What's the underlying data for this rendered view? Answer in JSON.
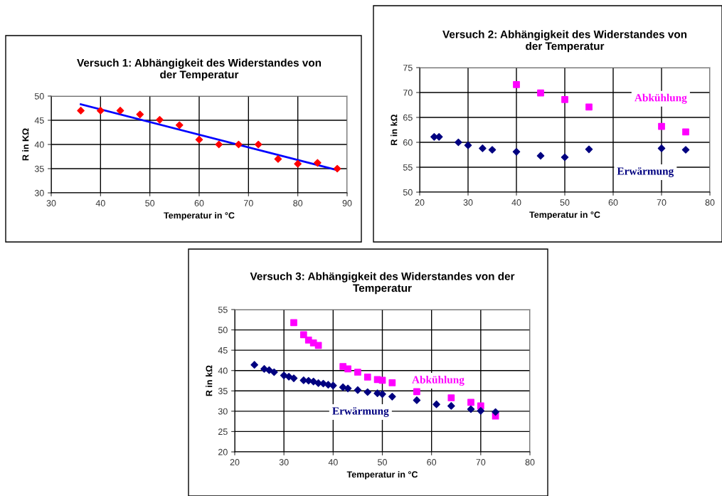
{
  "chart_data": [
    {
      "type": "scatter",
      "title": "Versuch 1: Abhängigkeit des Widerstandes von\nder Temperatur",
      "xlabel": "Temperatur in °C",
      "ylabel": "R in KΩ",
      "xlim": [
        30,
        90
      ],
      "xticks": [
        30,
        40,
        50,
        60,
        70,
        80,
        90
      ],
      "ylim": [
        30,
        50
      ],
      "yticks": [
        30,
        35,
        40,
        45,
        50
      ],
      "grid": true,
      "legend": false,
      "series": [
        {
          "color": "#ff0000",
          "marker": "diamond",
          "x": [
            36,
            40,
            44,
            48,
            52,
            56,
            60,
            64,
            68,
            72,
            76,
            80,
            84,
            88
          ],
          "values": [
            47,
            47,
            47,
            46.2,
            45.1,
            44,
            41,
            40,
            40,
            40,
            37,
            36,
            36.2,
            35
          ]
        },
        {
          "type": "line",
          "color": "#0000ff",
          "x": [
            36,
            88
          ],
          "values": [
            48.3,
            34.7
          ]
        }
      ]
    },
    {
      "type": "scatter",
      "title": "Versuch 2: Abhängigkeit des Widerstandes von\nder Temperatur",
      "xlabel": "Temperatur in °C",
      "ylabel": "R in kΩ",
      "xlim": [
        20,
        80
      ],
      "xticks": [
        20,
        30,
        40,
        50,
        60,
        70,
        80
      ],
      "ylim": [
        50,
        75
      ],
      "yticks": [
        50,
        55,
        60,
        65,
        70,
        75
      ],
      "grid": true,
      "legend": false,
      "series": [
        {
          "name": "Abkühlung",
          "color": "#ff00ff",
          "marker": "square",
          "x": [
            40,
            45,
            50,
            55,
            70,
            75
          ],
          "values": [
            71.6,
            69.9,
            68.6,
            67.1,
            63.2,
            62.1
          ]
        },
        {
          "name": "Erwärmung",
          "color": "#000080",
          "marker": "diamond",
          "x": [
            23,
            24,
            28,
            30,
            33,
            35,
            40,
            45,
            50,
            55,
            70,
            75
          ],
          "values": [
            61.1,
            61.1,
            60,
            59.4,
            58.8,
            58.5,
            58.1,
            57.3,
            57,
            58.6,
            58.8,
            58.5
          ]
        }
      ]
    },
    {
      "type": "scatter",
      "title": "Versuch 3: Abhängigkeit des Widerstandes von der\nTemperatur",
      "xlabel": "Temperatur in °C",
      "ylabel": "R in kΩ",
      "xlim": [
        20,
        80
      ],
      "xticks": [
        20,
        30,
        40,
        50,
        60,
        70,
        80
      ],
      "ylim": [
        20,
        55
      ],
      "yticks": [
        20,
        25,
        30,
        35,
        40,
        45,
        50,
        55
      ],
      "grid": true,
      "legend": false,
      "series": [
        {
          "name": "Abkühlung",
          "color": "#ff00ff",
          "marker": "square",
          "x": [
            32,
            34,
            35,
            36,
            37,
            42,
            43,
            45,
            47,
            49,
            50,
            52,
            57,
            64,
            68,
            70,
            73
          ],
          "values": [
            51.8,
            48.8,
            47.5,
            46.8,
            46.2,
            41,
            40.4,
            39.6,
            38.4,
            37.8,
            37.6,
            37,
            34.8,
            33.3,
            32.2,
            31.3,
            28.8
          ]
        },
        {
          "name": "Erwärmung",
          "color": "#000080",
          "marker": "diamond",
          "x": [
            24,
            26,
            27,
            28,
            30,
            31,
            32,
            34,
            35,
            36,
            37,
            38,
            39,
            40,
            42,
            43,
            45,
            47,
            49,
            50,
            52,
            57,
            61,
            64,
            68,
            70,
            73
          ],
          "values": [
            41.4,
            40.4,
            40.1,
            39.6,
            38.8,
            38.5,
            38.1,
            37.6,
            37.5,
            37.3,
            36.9,
            36.8,
            36.5,
            36.3,
            35.9,
            35.6,
            35.2,
            34.7,
            34.4,
            34.2,
            33.6,
            32.7,
            31.7,
            31.3,
            30.5,
            30.1,
            29.8
          ]
        }
      ]
    }
  ]
}
